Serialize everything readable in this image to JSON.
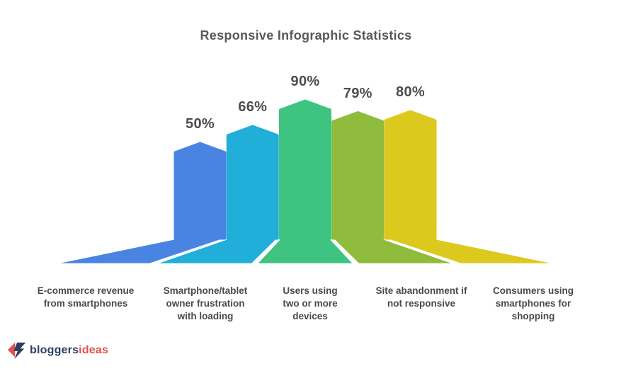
{
  "title": "Responsive Infographic Statistics",
  "chart_data": {
    "type": "bar",
    "title": "Responsive Infographic Statistics",
    "categories": [
      "E-commerce revenue\nfrom smartphones",
      "Smartphone/tablet\nowner frustration\nwith loading",
      "Users using\ntwo or more\ndevices",
      "Site abandonment if\nnot responsive",
      "Consumers using\nsmartphones for\nshopping"
    ],
    "values": [
      50,
      66,
      90,
      79,
      80
    ],
    "value_labels": [
      "50%",
      "66%",
      "90%",
      "79%",
      "80%"
    ],
    "bar_colors": [
      "#4a84e2",
      "#21aed8",
      "#3ec480",
      "#8fbc3d",
      "#dcc91d"
    ],
    "bar_shape": "pentagon arrow pointing up with perspective floor base",
    "xlabel": "",
    "ylabel": "",
    "ylim": [
      0,
      100
    ],
    "grid": false,
    "legend": null
  },
  "colors": {
    "background": "#ffffff",
    "title_text": "#58585b",
    "value_text": "#4d4d4d",
    "category_text": "#4a4a4b",
    "logo_navy": "#2d3e5f",
    "logo_red": "#e05151",
    "separator_white": "#ffffff"
  },
  "logo": {
    "part1": "bloggers",
    "part2": "ideas",
    "icon": "red left arrow with navy lightning bolt"
  }
}
